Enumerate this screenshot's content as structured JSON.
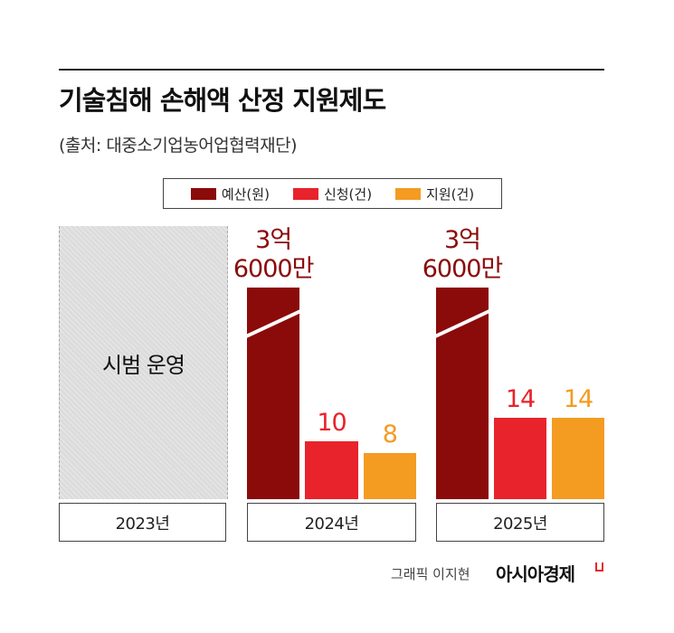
{
  "chart_data": {
    "type": "bar",
    "title": "기술침해 손해액 산정 지원제도",
    "subtitle": "(출처: 대중소기업농어업협력재단)",
    "categories": [
      "2023년",
      "2024년",
      "2025년"
    ],
    "series": [
      {
        "name": "예산(원)",
        "color": "#8b0a0a",
        "values": [
          null,
          360000000,
          360000000
        ],
        "value_labels": [
          null,
          "3억\n6000만",
          "3억\n6000만"
        ]
      },
      {
        "name": "신청(건)",
        "color": "#e8232b",
        "values": [
          null,
          10,
          14
        ]
      },
      {
        "name": "지원(건)",
        "color": "#f49b22",
        "values": [
          null,
          8,
          14
        ]
      }
    ],
    "annotation": {
      "category": 0,
      "text": "시범 운영"
    },
    "credit": "그래픽 이지현",
    "publisher": "아시아경제"
  }
}
